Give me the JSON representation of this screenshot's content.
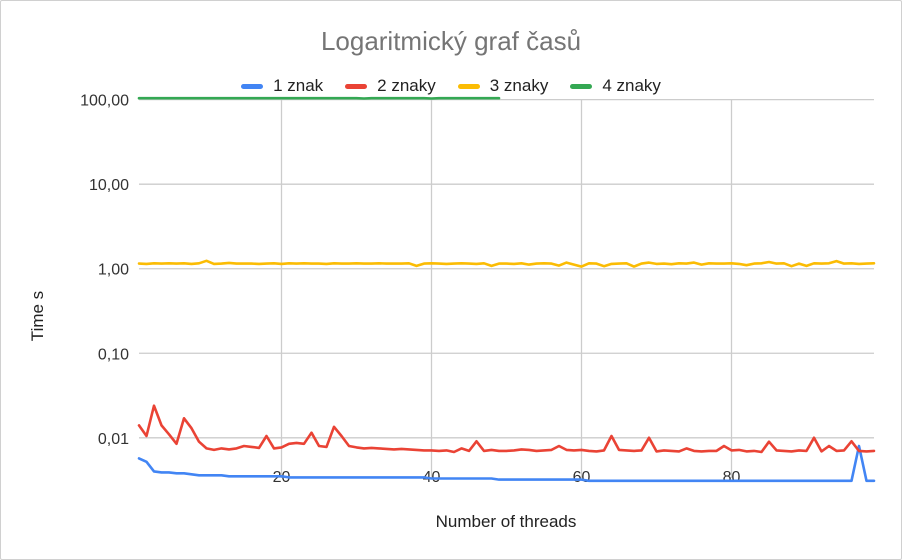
{
  "chart_data": {
    "type": "line",
    "title": "Logaritmický graf časů",
    "xlabel": "Number of threads",
    "ylabel": "Time s",
    "y_scale": "log",
    "ylim": [
      0.003,
      130
    ],
    "xlim": [
      1,
      99
    ],
    "grid": true,
    "legend_position": "top",
    "y_ticks": [
      {
        "value": 100,
        "label": "100,00"
      },
      {
        "value": 10,
        "label": "10,00"
      },
      {
        "value": 1,
        "label": "1,00"
      },
      {
        "value": 0.1,
        "label": "0,10"
      },
      {
        "value": 0.01,
        "label": "0,01"
      }
    ],
    "x_ticks": [
      {
        "value": 20,
        "label": "20"
      },
      {
        "value": 40,
        "label": "40"
      },
      {
        "value": 60,
        "label": "60"
      },
      {
        "value": 80,
        "label": "80"
      }
    ],
    "series": [
      {
        "name": "1 znak",
        "color": "#4285f4",
        "x": [
          1,
          2,
          3,
          4,
          5,
          6,
          7,
          8,
          9,
          10,
          11,
          12,
          13,
          14,
          15,
          16,
          17,
          18,
          19,
          20,
          21,
          22,
          23,
          24,
          25,
          26,
          27,
          28,
          29,
          30,
          31,
          32,
          33,
          34,
          35,
          36,
          37,
          38,
          39,
          40,
          41,
          42,
          43,
          44,
          45,
          46,
          47,
          48,
          49,
          50,
          51,
          52,
          53,
          54,
          55,
          56,
          57,
          58,
          59,
          60,
          61,
          62,
          63,
          64,
          65,
          66,
          67,
          68,
          69,
          70,
          71,
          72,
          73,
          74,
          75,
          76,
          77,
          78,
          79,
          80,
          81,
          82,
          83,
          84,
          85,
          86,
          87,
          88,
          89,
          90,
          91,
          92,
          93,
          94,
          95,
          96,
          97,
          98,
          99
        ],
        "values": [
          0.0057,
          0.0052,
          0.004,
          0.0039,
          0.0039,
          0.0038,
          0.0038,
          0.0037,
          0.0036,
          0.0036,
          0.0036,
          0.0036,
          0.0035,
          0.0035,
          0.0035,
          0.0035,
          0.0035,
          0.0035,
          0.0035,
          0.0035,
          0.0034,
          0.0034,
          0.0034,
          0.0034,
          0.0034,
          0.0034,
          0.0034,
          0.0034,
          0.0034,
          0.0034,
          0.0034,
          0.0034,
          0.0034,
          0.0034,
          0.0034,
          0.0034,
          0.0034,
          0.0034,
          0.0034,
          0.0033,
          0.0033,
          0.0033,
          0.0033,
          0.0033,
          0.0033,
          0.0033,
          0.0033,
          0.0033,
          0.0032,
          0.0032,
          0.0032,
          0.0032,
          0.0032,
          0.0032,
          0.0032,
          0.0032,
          0.0032,
          0.0032,
          0.0032,
          0.0032,
          0.0031,
          0.0031,
          0.0031,
          0.0031,
          0.0031,
          0.0031,
          0.0031,
          0.0031,
          0.0031,
          0.0031,
          0.0031,
          0.0031,
          0.0031,
          0.0031,
          0.0031,
          0.0031,
          0.0031,
          0.0031,
          0.0031,
          0.0031,
          0.0031,
          0.0031,
          0.0031,
          0.0031,
          0.0031,
          0.0031,
          0.0031,
          0.0031,
          0.0031,
          0.0031,
          0.0031,
          0.0031,
          0.0031,
          0.0031,
          0.0031,
          0.0031,
          0.008,
          0.0031,
          0.0031
        ]
      },
      {
        "name": "2 znaky",
        "color": "#ea4335",
        "x": [
          1,
          2,
          3,
          4,
          5,
          6,
          7,
          8,
          9,
          10,
          11,
          12,
          13,
          14,
          15,
          16,
          17,
          18,
          19,
          20,
          21,
          22,
          23,
          24,
          25,
          26,
          27,
          28,
          29,
          30,
          31,
          32,
          33,
          34,
          35,
          36,
          37,
          38,
          39,
          40,
          41,
          42,
          43,
          44,
          45,
          46,
          47,
          48,
          49,
          50,
          51,
          52,
          53,
          54,
          55,
          56,
          57,
          58,
          59,
          60,
          61,
          62,
          63,
          64,
          65,
          66,
          67,
          68,
          69,
          70,
          71,
          72,
          73,
          74,
          75,
          76,
          77,
          78,
          79,
          80,
          81,
          82,
          83,
          84,
          85,
          86,
          87,
          88,
          89,
          90,
          91,
          92,
          93,
          94,
          95,
          96,
          97,
          98,
          99
        ],
        "values": [
          0.014,
          0.0105,
          0.024,
          0.014,
          0.011,
          0.0085,
          0.017,
          0.013,
          0.009,
          0.0075,
          0.0072,
          0.0075,
          0.0073,
          0.0075,
          0.008,
          0.0078,
          0.0076,
          0.0105,
          0.0075,
          0.0077,
          0.0085,
          0.0087,
          0.0085,
          0.0115,
          0.008,
          0.0078,
          0.0135,
          0.0105,
          0.008,
          0.0077,
          0.0075,
          0.0076,
          0.0075,
          0.0074,
          0.0073,
          0.0074,
          0.0073,
          0.0072,
          0.0071,
          0.0071,
          0.007,
          0.0071,
          0.0068,
          0.0075,
          0.007,
          0.0091,
          0.007,
          0.0072,
          0.007,
          0.007,
          0.0071,
          0.0073,
          0.0072,
          0.007,
          0.0071,
          0.0072,
          0.008,
          0.0072,
          0.0071,
          0.0072,
          0.007,
          0.0069,
          0.0071,
          0.0105,
          0.0072,
          0.0071,
          0.007,
          0.0071,
          0.01,
          0.0069,
          0.0071,
          0.007,
          0.0069,
          0.0075,
          0.007,
          0.0069,
          0.007,
          0.007,
          0.008,
          0.0071,
          0.0072,
          0.0069,
          0.007,
          0.0068,
          0.009,
          0.0071,
          0.007,
          0.0069,
          0.0071,
          0.007,
          0.01,
          0.0069,
          0.008,
          0.007,
          0.0071,
          0.0091,
          0.007,
          0.0069,
          0.007
        ]
      },
      {
        "name": "3 znaky",
        "color": "#fbbc04",
        "x": [
          1,
          2,
          3,
          4,
          5,
          6,
          7,
          8,
          9,
          10,
          11,
          12,
          13,
          14,
          15,
          16,
          17,
          18,
          19,
          20,
          21,
          22,
          23,
          24,
          25,
          26,
          27,
          28,
          29,
          30,
          31,
          32,
          33,
          34,
          35,
          36,
          37,
          38,
          39,
          40,
          41,
          42,
          43,
          44,
          45,
          46,
          47,
          48,
          49,
          50,
          51,
          52,
          53,
          54,
          55,
          56,
          57,
          58,
          59,
          60,
          61,
          62,
          63,
          64,
          65,
          66,
          67,
          68,
          69,
          70,
          71,
          72,
          73,
          74,
          75,
          76,
          77,
          78,
          79,
          80,
          81,
          82,
          83,
          84,
          85,
          86,
          87,
          88,
          89,
          90,
          91,
          92,
          93,
          94,
          95,
          96,
          97,
          98,
          99
        ],
        "values": [
          1.15,
          1.14,
          1.16,
          1.15,
          1.16,
          1.15,
          1.16,
          1.14,
          1.16,
          1.24,
          1.14,
          1.15,
          1.17,
          1.15,
          1.15,
          1.15,
          1.14,
          1.15,
          1.16,
          1.14,
          1.16,
          1.15,
          1.16,
          1.15,
          1.15,
          1.14,
          1.16,
          1.15,
          1.15,
          1.16,
          1.15,
          1.15,
          1.16,
          1.15,
          1.15,
          1.15,
          1.16,
          1.08,
          1.15,
          1.16,
          1.15,
          1.14,
          1.15,
          1.16,
          1.15,
          1.14,
          1.16,
          1.08,
          1.15,
          1.15,
          1.14,
          1.16,
          1.12,
          1.15,
          1.16,
          1.15,
          1.09,
          1.18,
          1.12,
          1.06,
          1.16,
          1.15,
          1.07,
          1.14,
          1.15,
          1.16,
          1.06,
          1.15,
          1.18,
          1.14,
          1.15,
          1.13,
          1.16,
          1.15,
          1.18,
          1.12,
          1.16,
          1.15,
          1.15,
          1.16,
          1.14,
          1.1,
          1.15,
          1.16,
          1.2,
          1.15,
          1.16,
          1.07,
          1.15,
          1.08,
          1.16,
          1.15,
          1.16,
          1.23,
          1.15,
          1.16,
          1.14,
          1.15,
          1.16
        ]
      },
      {
        "name": "4 znaky",
        "color": "#34a853",
        "x": [
          1,
          2,
          3,
          4,
          5,
          6,
          7,
          8,
          9,
          10,
          11,
          12,
          13,
          14,
          15,
          16,
          17,
          18,
          19,
          20,
          21,
          22,
          23,
          24,
          25,
          26,
          27,
          28,
          29,
          30,
          31,
          32,
          33,
          34,
          35,
          36,
          37,
          38,
          39,
          40,
          41,
          42,
          43,
          44,
          45,
          46,
          47,
          48,
          49
        ],
        "values": [
          104,
          104,
          104,
          104,
          104,
          104,
          104,
          104,
          104,
          104,
          104,
          104,
          104,
          104,
          104,
          104,
          104,
          104,
          104,
          104,
          104,
          104,
          104,
          104,
          104,
          104,
          104,
          104,
          104,
          104,
          103,
          104,
          104,
          104,
          104,
          104,
          104,
          104,
          104,
          103,
          104,
          104,
          104,
          104,
          104,
          104,
          104,
          104,
          104
        ]
      }
    ]
  }
}
